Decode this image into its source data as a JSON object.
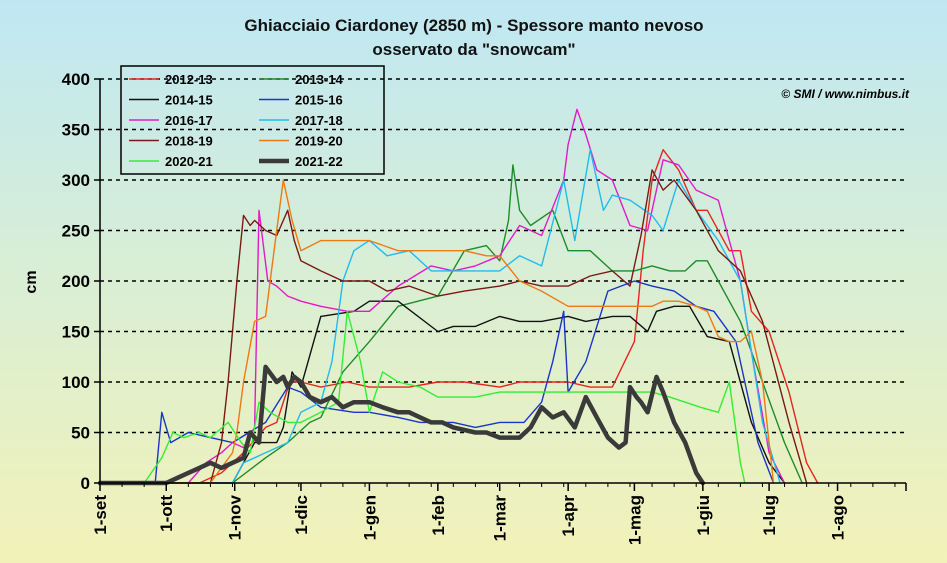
{
  "chart_data": {
    "type": "line",
    "title": "Ghiacciaio Ciardoney (2850 m) - Spessore manto nevoso",
    "subtitle": "osservato da \"snowcam\"",
    "ylabel": "cm",
    "xlabel": "",
    "ylim": [
      0,
      400
    ],
    "yticks": [
      "0",
      "50",
      "100",
      "150",
      "200",
      "250",
      "300",
      "350",
      "400"
    ],
    "ytick_values": [
      0,
      50,
      100,
      150,
      200,
      250,
      300,
      350,
      400
    ],
    "xlim": [
      0,
      365
    ],
    "xticks": [
      "1-set",
      "1-ott",
      "1-nov",
      "1-dic",
      "1-gen",
      "1-feb",
      "1-mar",
      "1-apr",
      "1-mag",
      "1-giu",
      "1-lug",
      "1-ago"
    ],
    "xtick_values": [
      0,
      30,
      61,
      91,
      122,
      153,
      181,
      212,
      242,
      273,
      303,
      334
    ],
    "grid": "horizontal dashed",
    "legend_position": "top-left",
    "copyright": "© SMI / www.nimbus.it",
    "series": [
      {
        "name": "2012-13",
        "color": "#e52520",
        "width": 1.4,
        "x": [
          0,
          45,
          55,
          65,
          75,
          80,
          86,
          91,
          100,
          112,
          122,
          140,
          153,
          165,
          181,
          190,
          200,
          212,
          222,
          232,
          242,
          246,
          250,
          255,
          262,
          266,
          270,
          275,
          285,
          290,
          295,
          303,
          312,
          320,
          325
        ],
        "y": [
          0,
          0,
          10,
          30,
          55,
          60,
          100,
          100,
          95,
          100,
          95,
          95,
          100,
          100,
          95,
          100,
          100,
          100,
          95,
          95,
          140,
          230,
          300,
          330,
          310,
          290,
          270,
          270,
          230,
          230,
          170,
          150,
          90,
          20,
          0
        ]
      },
      {
        "name": "2013-14",
        "color": "#1e8c2a",
        "width": 1.4,
        "x": [
          0,
          60,
          75,
          85,
          95,
          100,
          110,
          122,
          135,
          153,
          165,
          175,
          181,
          185,
          187,
          190,
          195,
          205,
          212,
          222,
          232,
          242,
          250,
          258,
          265,
          270,
          275,
          280,
          290,
          300,
          310,
          318
        ],
        "y": [
          0,
          0,
          25,
          40,
          60,
          65,
          110,
          140,
          175,
          185,
          230,
          235,
          220,
          260,
          315,
          270,
          255,
          270,
          230,
          230,
          210,
          210,
          215,
          210,
          210,
          220,
          220,
          200,
          160,
          100,
          40,
          0
        ]
      },
      {
        "name": "2014-15",
        "color": "#111111",
        "width": 1.4,
        "x": [
          0,
          60,
          65,
          70,
          80,
          83,
          87,
          91,
          100,
          115,
          122,
          135,
          153,
          160,
          170,
          181,
          190,
          200,
          212,
          220,
          232,
          240,
          248,
          252,
          260,
          267,
          275,
          285,
          295,
          303,
          310
        ],
        "y": [
          0,
          0,
          20,
          40,
          40,
          55,
          110,
          95,
          165,
          170,
          180,
          180,
          150,
          155,
          155,
          165,
          160,
          160,
          165,
          160,
          165,
          165,
          150,
          170,
          175,
          175,
          145,
          140,
          60,
          20,
          0
        ]
      },
      {
        "name": "2015-16",
        "color": "#1a35c8",
        "width": 1.4,
        "x": [
          0,
          25,
          28,
          32,
          40,
          50,
          60,
          75,
          85,
          91,
          100,
          115,
          122,
          135,
          145,
          153,
          160,
          170,
          181,
          192,
          200,
          205,
          210,
          212,
          220,
          230,
          242,
          250,
          260,
          270,
          278,
          288,
          298,
          305
        ],
        "y": [
          0,
          0,
          70,
          40,
          50,
          45,
          40,
          60,
          95,
          90,
          75,
          70,
          70,
          65,
          60,
          60,
          60,
          55,
          60,
          60,
          80,
          120,
          170,
          90,
          120,
          190,
          200,
          195,
          190,
          175,
          170,
          140,
          40,
          0
        ]
      },
      {
        "name": "2016-17",
        "color": "#e01cc8",
        "width": 1.4,
        "x": [
          0,
          40,
          48,
          55,
          60,
          65,
          70,
          72,
          76,
          80,
          85,
          91,
          100,
          112,
          122,
          135,
          150,
          160,
          170,
          181,
          190,
          200,
          210,
          212,
          216,
          220,
          225,
          232,
          240,
          248,
          255,
          262,
          270,
          280,
          285,
          290,
          295,
          303,
          310
        ],
        "y": [
          0,
          0,
          20,
          30,
          40,
          35,
          55,
          270,
          200,
          195,
          185,
          180,
          175,
          170,
          170,
          195,
          215,
          210,
          215,
          225,
          255,
          245,
          300,
          335,
          370,
          345,
          310,
          300,
          255,
          250,
          320,
          315,
          290,
          280,
          240,
          200,
          130,
          30,
          0
        ]
      },
      {
        "name": "2017-18",
        "color": "#22bbee",
        "width": 1.4,
        "x": [
          0,
          60,
          65,
          70,
          75,
          85,
          91,
          100,
          105,
          110,
          115,
          122,
          130,
          140,
          150,
          160,
          170,
          181,
          190,
          200,
          210,
          215,
          222,
          228,
          232,
          240,
          250,
          255,
          262,
          270,
          280,
          290,
          300,
          308
        ],
        "y": [
          0,
          0,
          20,
          25,
          30,
          40,
          70,
          80,
          120,
          200,
          230,
          240,
          225,
          230,
          210,
          210,
          210,
          210,
          225,
          215,
          300,
          240,
          330,
          270,
          285,
          280,
          265,
          250,
          300,
          270,
          240,
          200,
          60,
          0
        ]
      },
      {
        "name": "2018-19",
        "color": "#7a1a12",
        "width": 1.4,
        "x": [
          0,
          50,
          55,
          58,
          62,
          65,
          68,
          70,
          75,
          80,
          85,
          88,
          91,
          100,
          110,
          122,
          130,
          140,
          153,
          165,
          181,
          190,
          200,
          212,
          222,
          232,
          240,
          245,
          250,
          255,
          260,
          270,
          280,
          290,
          300,
          312,
          320
        ],
        "y": [
          0,
          0,
          40,
          100,
          200,
          265,
          255,
          260,
          250,
          245,
          270,
          240,
          220,
          210,
          200,
          200,
          190,
          195,
          185,
          190,
          195,
          200,
          195,
          195,
          205,
          210,
          195,
          245,
          310,
          290,
          300,
          270,
          230,
          210,
          160,
          60,
          0
        ]
      },
      {
        "name": "2019-20",
        "color": "#ee7a12",
        "width": 1.4,
        "x": [
          0,
          50,
          60,
          62,
          65,
          70,
          75,
          80,
          83,
          87,
          91,
          100,
          115,
          122,
          135,
          153,
          165,
          175,
          181,
          190,
          200,
          212,
          222,
          232,
          242,
          250,
          255,
          262,
          270,
          275,
          280,
          285,
          290,
          295,
          300,
          305
        ],
        "y": [
          0,
          0,
          30,
          50,
          100,
          160,
          165,
          250,
          300,
          260,
          230,
          240,
          240,
          240,
          230,
          230,
          230,
          225,
          225,
          200,
          190,
          175,
          175,
          175,
          175,
          175,
          180,
          180,
          175,
          170,
          145,
          140,
          140,
          150,
          100,
          0
        ]
      },
      {
        "name": "2020-21",
        "color": "#33ee33",
        "width": 1.4,
        "x": [
          0,
          20,
          28,
          33,
          38,
          45,
          50,
          58,
          64,
          68,
          72,
          77,
          85,
          91,
          100,
          108,
          112,
          118,
          122,
          128,
          135,
          145,
          153,
          160,
          170,
          181,
          190,
          200,
          212,
          222,
          232,
          242,
          250,
          258,
          265,
          272,
          280,
          285,
          290,
          292
        ],
        "y": [
          0,
          0,
          25,
          50,
          45,
          50,
          45,
          60,
          40,
          30,
          80,
          70,
          60,
          60,
          70,
          80,
          170,
          120,
          70,
          110,
          100,
          95,
          85,
          85,
          85,
          90,
          90,
          90,
          90,
          90,
          90,
          90,
          90,
          85,
          80,
          75,
          70,
          100,
          20,
          0
        ]
      },
      {
        "name": "2021-22",
        "color": "#3a3a3a",
        "width": 4.5,
        "x": [
          0,
          30,
          35,
          40,
          45,
          50,
          55,
          60,
          65,
          68,
          72,
          75,
          80,
          83,
          85,
          88,
          91,
          95,
          100,
          105,
          110,
          115,
          122,
          128,
          135,
          140,
          145,
          150,
          155,
          160,
          170,
          175,
          181,
          190,
          195,
          200,
          205,
          210,
          215,
          220,
          225,
          230,
          235,
          238,
          240,
          243,
          245,
          248,
          252,
          255,
          260,
          265,
          270,
          273
        ],
        "y": [
          0,
          0,
          5,
          10,
          15,
          20,
          15,
          20,
          25,
          50,
          40,
          115,
          100,
          105,
          95,
          105,
          100,
          85,
          80,
          85,
          75,
          80,
          80,
          75,
          70,
          70,
          65,
          60,
          60,
          55,
          50,
          50,
          45,
          45,
          55,
          75,
          65,
          70,
          55,
          85,
          65,
          45,
          35,
          40,
          95,
          85,
          80,
          70,
          105,
          90,
          60,
          40,
          10,
          0
        ]
      }
    ]
  }
}
